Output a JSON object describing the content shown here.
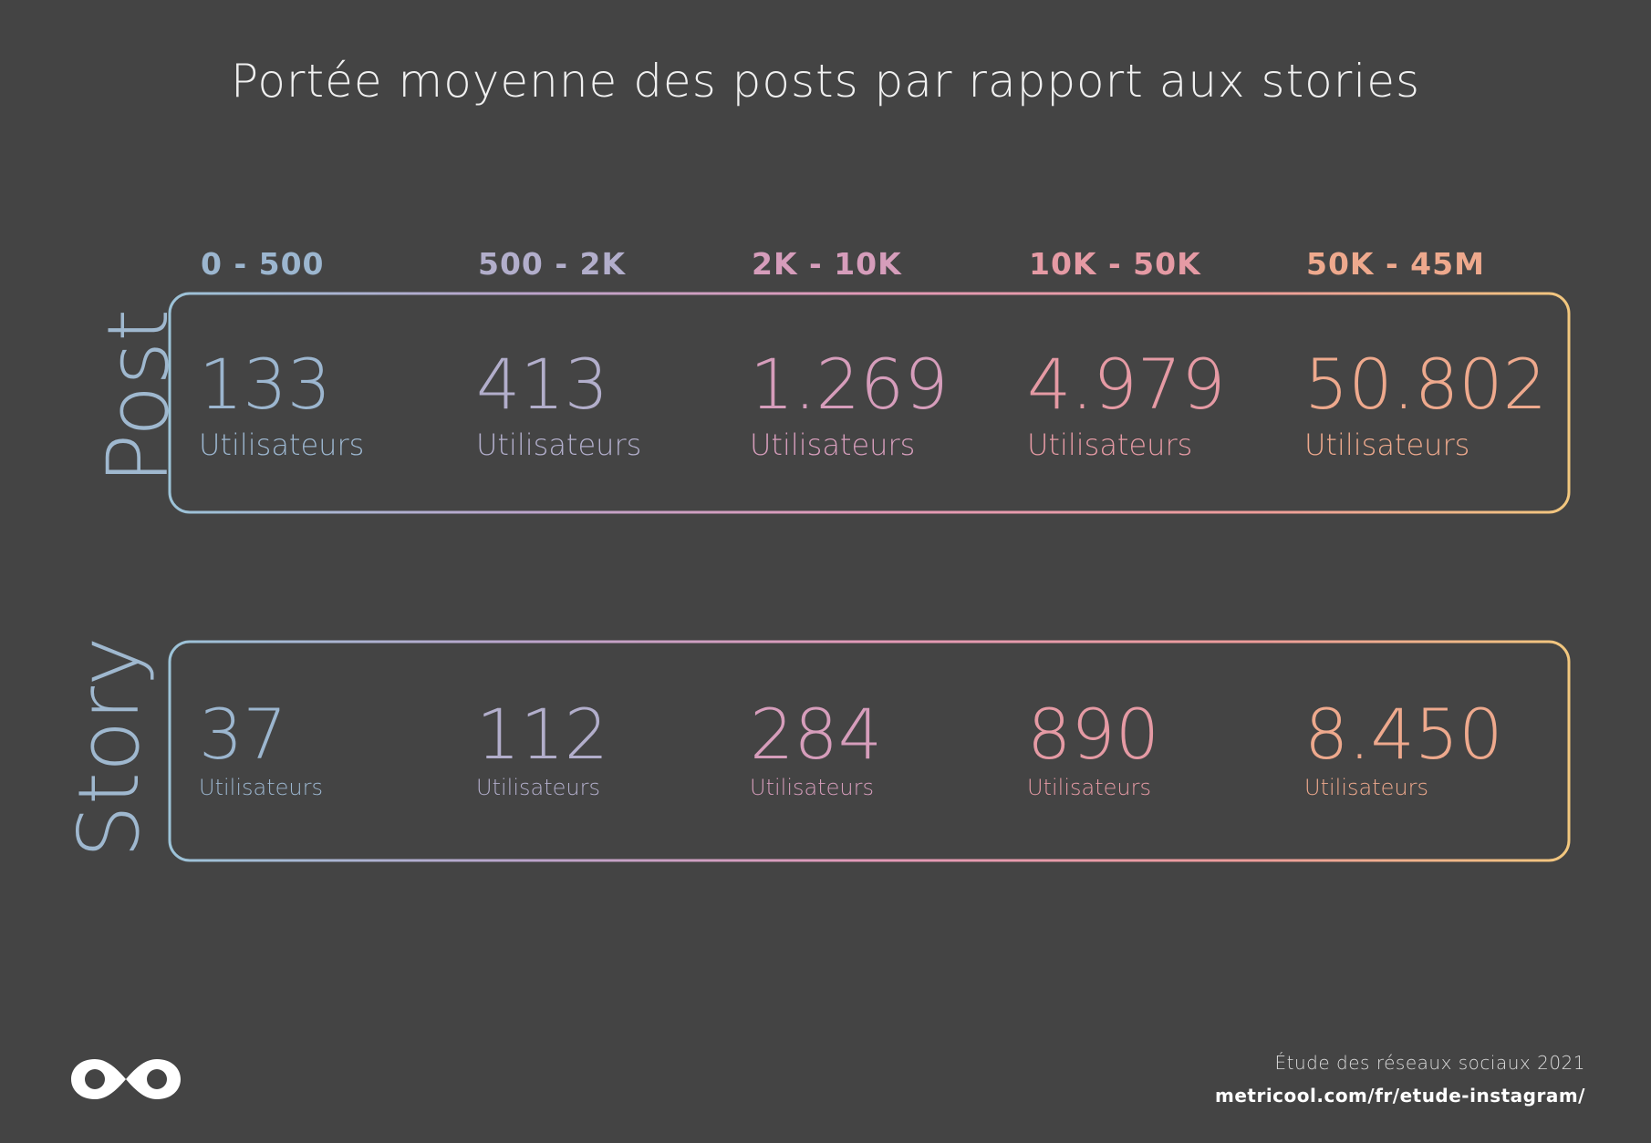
{
  "title": "Portée moyenne des posts par rapport aux stories",
  "tiers": [
    "0 - 500",
    "500 - 2K",
    "2K - 10K",
    "10K - 50K",
    "50K - 45M"
  ],
  "tier_colors": [
    "#9cb6cf",
    "#b2aecb",
    "#d69dbb",
    "#e59aa4",
    "#eea98d"
  ],
  "rows": {
    "post": {
      "label": "Post",
      "values": [
        "133",
        "413",
        "1.269",
        "4.979",
        "50.802"
      ],
      "unit": "Utilisateurs"
    },
    "story": {
      "label": "Story",
      "values": [
        "37",
        "112",
        "284",
        "890",
        "8.450"
      ],
      "unit": "Utilisateurs"
    }
  },
  "gradient": [
    "#9cc3d8",
    "#bba5cc",
    "#e39ab8",
    "#ee9d9a",
    "#f2c77e"
  ],
  "chart_data": {
    "type": "table",
    "title": "Portée moyenne des posts par rapport aux stories",
    "categories": [
      "0 - 500",
      "500 - 2K",
      "2K - 10K",
      "10K - 50K",
      "50K - 45M"
    ],
    "series": [
      {
        "name": "Post",
        "values": [
          133,
          413,
          1269,
          4979,
          50802
        ]
      },
      {
        "name": "Story",
        "values": [
          37,
          112,
          284,
          890,
          8450
        ]
      }
    ],
    "unit": "Utilisateurs"
  },
  "footer": {
    "study": "Étude des réseaux sociaux 2021",
    "url": "metricool.com/fr/etude-instagram/"
  }
}
